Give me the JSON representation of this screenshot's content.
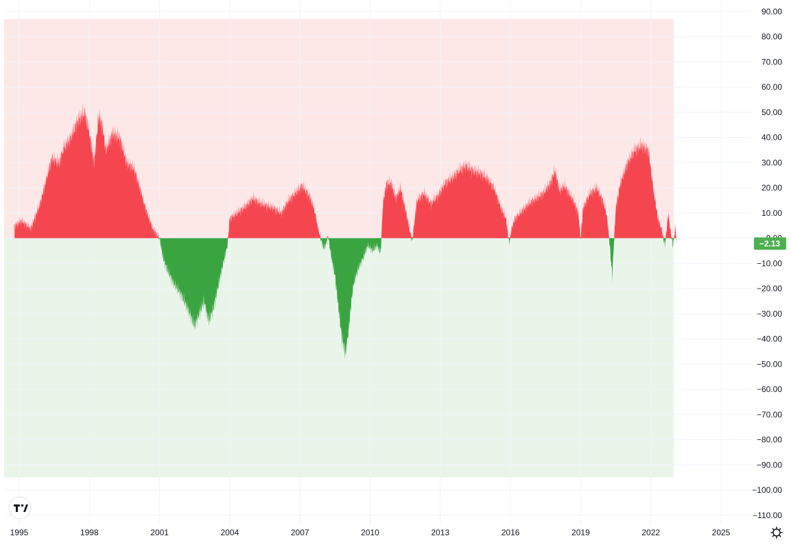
{
  "chart_data": {
    "type": "area",
    "title": "",
    "xlabel": "",
    "ylabel": "",
    "xlim": [
      1994.8,
      2026.2
    ],
    "ylim": [
      -113,
      93
    ],
    "y_ticks": [
      90,
      80,
      70,
      60,
      50,
      40,
      30,
      20,
      10,
      0,
      -10,
      -20,
      -30,
      -40,
      -50,
      -60,
      -70,
      -80,
      -90,
      -100,
      -110
    ],
    "y_tick_labels": [
      "90.00",
      "80.00",
      "70.00",
      "60.00",
      "50.00",
      "40.00",
      "30.00",
      "20.00",
      "10.00",
      "0.00",
      "−10.00",
      "−20.00",
      "−30.00",
      "−40.00",
      "−50.00",
      "−60.00",
      "−70.00",
      "−80.00",
      "−90.00",
      "−100.00",
      "−110.00"
    ],
    "x_ticks": [
      1995,
      1998,
      2001,
      2004,
      2007,
      2010,
      2013,
      2016,
      2019,
      2022,
      2025
    ],
    "x_tick_labels": [
      "1995",
      "1998",
      "2001",
      "2004",
      "2007",
      "2010",
      "2013",
      "2016",
      "2019",
      "2022",
      "2025"
    ],
    "bands": [
      {
        "name": "upper",
        "from": 0,
        "to": 87,
        "color": "#fde8e8"
      },
      {
        "name": "lower",
        "from": -95,
        "to": 0,
        "color": "#eaf5ea"
      }
    ],
    "positive_color": "#f5464f",
    "negative_color": "#3aa540",
    "last_value": -2.13,
    "last_value_label": "−2.13",
    "last_value_color": "#4caf50",
    "grid": true,
    "series": [
      {
        "x": [
          1994.8,
          1995.1,
          1995.5,
          1995.9,
          1996.2,
          1996.4,
          1996.7,
          1996.9,
          1997.2,
          1997.5,
          1997.8,
          1998.0,
          1998.2,
          1998.4,
          1998.55,
          1998.7,
          1999.0,
          1999.3,
          1999.6,
          1999.9,
          2000.1,
          2000.4,
          2000.7,
          2001.0,
          2001.15,
          2001.3,
          2001.6,
          2001.9,
          2002.2,
          2002.5,
          2002.7,
          2002.9,
          2003.1,
          2003.3,
          2003.6,
          2003.9,
          2004.0,
          2004.3,
          2004.7,
          2005.0,
          2005.3,
          2005.6,
          2005.9,
          2006.2,
          2006.5,
          2006.8,
          2007.1,
          2007.4,
          2007.6,
          2007.8,
          2008.0,
          2008.1,
          2008.2,
          2008.35,
          2008.5,
          2008.65,
          2008.8,
          2008.95,
          2009.1,
          2009.2,
          2009.3,
          2009.5,
          2009.7,
          2009.9,
          2010.1,
          2010.3,
          2010.45,
          2010.55,
          2010.7,
          2010.9,
          2011.1,
          2011.3,
          2011.5,
          2011.7,
          2011.8,
          2012.0,
          2012.3,
          2012.6,
          2012.9,
          2013.2,
          2013.5,
          2013.8,
          2014.1,
          2014.4,
          2014.7,
          2015.0,
          2015.3,
          2015.6,
          2015.8,
          2015.95,
          2016.05,
          2016.2,
          2016.5,
          2016.8,
          2017.1,
          2017.4,
          2017.7,
          2017.9,
          2018.1,
          2018.3,
          2018.5,
          2018.7,
          2018.9,
          2019.0,
          2019.1,
          2019.4,
          2019.7,
          2019.95,
          2020.1,
          2020.2,
          2020.35,
          2020.5,
          2020.7,
          2021.0,
          2021.3,
          2021.6,
          2021.9,
          2022.1,
          2022.3,
          2022.45,
          2022.6,
          2022.75,
          2022.85,
          2022.95,
          2023.05,
          2023.1
        ],
        "y": [
          5,
          7,
          4,
          14,
          25,
          32,
          30,
          36,
          40,
          47,
          50,
          42,
          30,
          49,
          45,
          35,
          42,
          40,
          30,
          28,
          22,
          12,
          4,
          0,
          -8,
          -12,
          -18,
          -22,
          -28,
          -35,
          -30,
          -25,
          -33,
          -28,
          -15,
          -3,
          8,
          10,
          13,
          16,
          14,
          13,
          12,
          10,
          15,
          18,
          21,
          17,
          12,
          3,
          -4,
          -3,
          1,
          -8,
          -15,
          -28,
          -40,
          -46,
          -35,
          -25,
          -18,
          -12,
          -8,
          -3,
          -5,
          -3,
          -6,
          14,
          22,
          22,
          16,
          20,
          12,
          3,
          -1,
          15,
          18,
          14,
          17,
          22,
          24,
          27,
          29,
          27,
          26,
          24,
          20,
          12,
          8,
          -2,
          4,
          8,
          11,
          14,
          16,
          18,
          22,
          27,
          19,
          21,
          18,
          15,
          10,
          0,
          12,
          18,
          20,
          15,
          10,
          2,
          -15,
          12,
          22,
          30,
          35,
          37,
          35,
          20,
          8,
          4,
          -3,
          10,
          2,
          -3,
          5,
          -2.13
        ]
      }
    ]
  },
  "logo": {
    "text": "TV",
    "icon": "tradingview-logo"
  },
  "settings_icon": "gear-icon"
}
